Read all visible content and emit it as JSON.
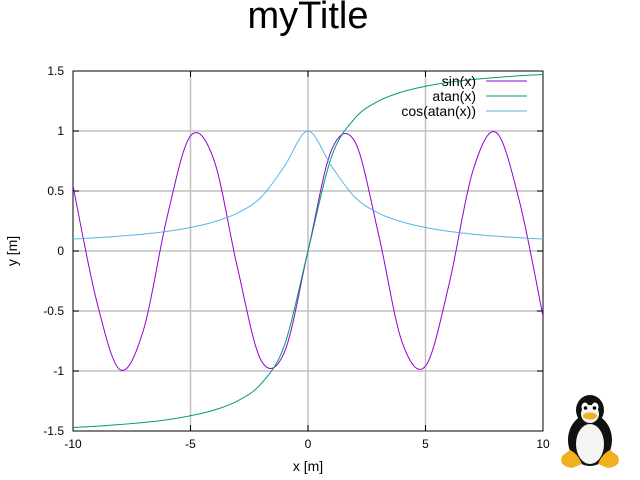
{
  "chart_data": {
    "type": "line",
    "title": "myTitle",
    "xlabel": "x [m]",
    "ylabel": "y [m]",
    "xlim": [
      -10,
      10
    ],
    "ylim": [
      -1.5,
      1.5
    ],
    "x_ticks": [
      -10,
      -5,
      0,
      5,
      10
    ],
    "y_ticks": [
      -1.5,
      -1,
      -0.5,
      0,
      0.5,
      1,
      1.5
    ],
    "x_tick_labels": [
      "-10",
      "-5",
      "0",
      "5",
      "10"
    ],
    "y_tick_labels": [
      "-1.5",
      "-1",
      "-0.5",
      "0",
      "0.5",
      "1",
      "1.5"
    ],
    "grid": true,
    "legend_position": "top-right",
    "x": [
      -10,
      -9,
      -8,
      -7,
      -6,
      -5,
      -4,
      -3,
      -2,
      -1,
      0,
      1,
      2,
      3,
      4,
      5,
      6,
      7,
      8,
      9,
      10
    ],
    "series": [
      {
        "name": "sin(x)",
        "color": "#9400d3",
        "values": [
          0.544,
          -0.412,
          -0.989,
          -0.657,
          0.279,
          0.959,
          0.757,
          -0.141,
          -0.909,
          -0.841,
          0,
          0.841,
          0.909,
          0.141,
          -0.757,
          -0.959,
          -0.279,
          0.657,
          0.989,
          0.412,
          -0.544
        ]
      },
      {
        "name": "atan(x)",
        "color": "#009e73",
        "values": [
          -1.471,
          -1.46,
          -1.446,
          -1.429,
          -1.406,
          -1.373,
          -1.326,
          -1.249,
          -1.107,
          -0.785,
          0,
          0.785,
          1.107,
          1.249,
          1.326,
          1.373,
          1.406,
          1.429,
          1.446,
          1.46,
          1.471
        ]
      },
      {
        "name": "cos(atan(x))",
        "color": "#56b4e9",
        "values": [
          0.0995,
          0.11,
          0.124,
          0.141,
          0.164,
          0.196,
          0.243,
          0.316,
          0.447,
          0.707,
          1.0,
          0.707,
          0.447,
          0.316,
          0.243,
          0.196,
          0.164,
          0.141,
          0.124,
          0.11,
          0.0995
        ]
      }
    ]
  },
  "logo": {
    "name": "tux-penguin-logo"
  }
}
